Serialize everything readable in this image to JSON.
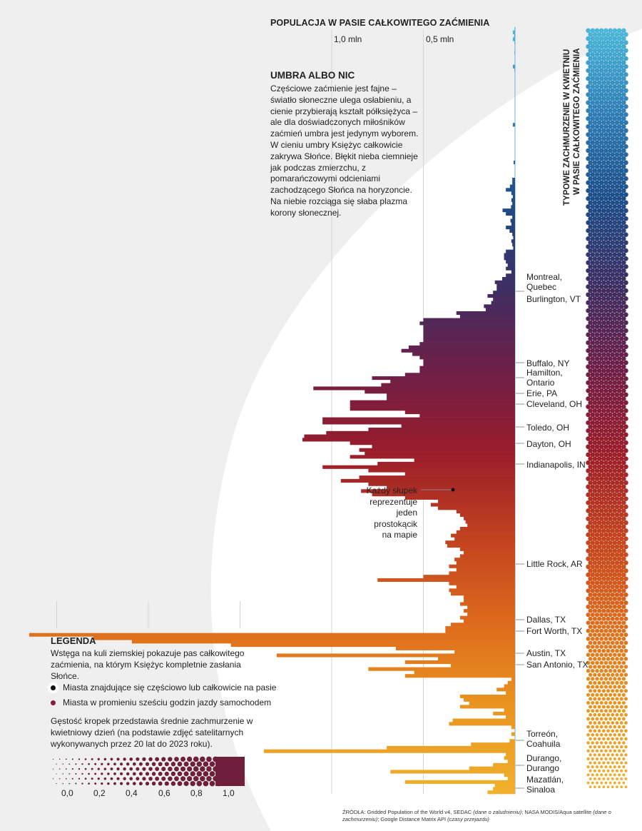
{
  "chart_data": {
    "type": "bar",
    "orientation": "horizontal",
    "title": "POPULACJA W PASIE CAŁKOWITEGO ZAĆMIENIA",
    "xlabel": "",
    "ylabel": "",
    "x_unit": "mln",
    "xlim": [
      0,
      2.65
    ],
    "x_ticks": [
      {
        "value": 1.0,
        "label": "1,0 mln"
      },
      {
        "value": 0.5,
        "label": "0,5 mln"
      }
    ],
    "x_gridlines": [
      0.5,
      1.0,
      1.5,
      2.0,
      2.5
    ],
    "grid": true,
    "bar_note": "Każdy słupek reprezentuje jeden prostokącik na mapie",
    "color_gradient": [
      "#4bb6d8",
      "#2f7db5",
      "#1d4e8a",
      "#3b2f63",
      "#6d1f48",
      "#9a1d2a",
      "#c2421f",
      "#dd6a1c",
      "#e9951f",
      "#f0b02c"
    ],
    "values": [
      0.003,
      0.012,
      0.005,
      0.012,
      0.003,
      0.0,
      0.002,
      0.003,
      0.0,
      0.0,
      0.0,
      0.012,
      0.003,
      0.0,
      0.0,
      0.0,
      0.0,
      0.0,
      0.0,
      0.0,
      0.0,
      0.0,
      0.0,
      0.0,
      0.0,
      0.0,
      0.0,
      0.0,
      0.012,
      0.0,
      0.0,
      0.0,
      0.0,
      0.0,
      0.0,
      0.0,
      0.0,
      0.0,
      0.0,
      0.008,
      0.0,
      0.0,
      0.0,
      0.0,
      0.015,
      0.015,
      0.028,
      0.05,
      0.02,
      0.012,
      0.02,
      0.015,
      0.022,
      0.068,
      0.05,
      0.015,
      0.025,
      0.02,
      0.05,
      0.03,
      0.015,
      0.01,
      0.02,
      0.015,
      0.01,
      0.05,
      0.06,
      0.06,
      0.05,
      0.04,
      0.05,
      0.02,
      0.05,
      0.07,
      0.11,
      0.1,
      0.1,
      0.12,
      0.15,
      0.12,
      0.13,
      0.17,
      0.16,
      0.32,
      0.3,
      0.5,
      0.52,
      0.5,
      0.5,
      0.5,
      0.5,
      0.5,
      0.52,
      0.58,
      0.62,
      0.56,
      0.52,
      0.5,
      0.5,
      0.52,
      0.52,
      0.6,
      0.78,
      0.68,
      0.73,
      1.1,
      0.82,
      0.7,
      0.7,
      0.9,
      0.9,
      0.9,
      0.6,
      0.52,
      1.05,
      1.05,
      0.62,
      0.8,
      1.03,
      1.15,
      1.16,
      0.9,
      0.78,
      0.85,
      0.82,
      0.9,
      0.55,
      0.75,
      1.05,
      0.8,
      0.6,
      0.85,
      0.95,
      0.8,
      0.7,
      0.84,
      0.78,
      0.6,
      0.42,
      0.46,
      0.42,
      0.32,
      0.3,
      0.28,
      0.27,
      0.26,
      0.3,
      0.32,
      0.35,
      0.33,
      0.38,
      0.37,
      0.3,
      0.28,
      0.3,
      0.33,
      0.32,
      0.36,
      0.32,
      0.36,
      0.5,
      0.75,
      0.36,
      0.32,
      0.36,
      0.35,
      0.28,
      0.28,
      0.3,
      0.26,
      0.28,
      0.26,
      0.3,
      0.28,
      0.35,
      0.38,
      0.38,
      2.65,
      2.3,
      2.09,
      1.55,
      0.65,
      0.33,
      1.3,
      0.42,
      0.6,
      0.35,
      0.8,
      0.55,
      0.6,
      0.02,
      0.04,
      0.06,
      0.1,
      0.05,
      0.3,
      0.28,
      0.25,
      0.3,
      0.06,
      0.12,
      0.05,
      0.34,
      0.36,
      0.02,
      0.0,
      0.02,
      0.0,
      0.03,
      0.24,
      0.7,
      1.37,
      0.05,
      0.06,
      0.04,
      0.12,
      0.25,
      0.68,
      0.06,
      0.04,
      0.6,
      0.11,
      0.12,
      0.15
    ]
  },
  "header": {
    "title": "POPULACJA W PASIE CAŁKOWITEGO ZAĆMIENIA",
    "ticks": [
      "1,0 mln",
      "0,5 mln"
    ]
  },
  "umbra": {
    "title": "UMBRA ALBO NIC",
    "text": "Częściowe zaćmienie jest fajne – światło słoneczne ulega osłabieniu, a cienie przybierają kształt półksiężyca – ale dla doświadczonych miłośników zaćmień umbra jest jedynym wyborem. W cieniu umbry Księżyc całkowicie zakrywa Słońce. Błękit nieba ciemnieje jak podczas zmierzchu, z pomarańczowymi odcieniami zachodzącego Słońca na horyzoncie. Na niebie rozciąga się słaba plazma korony słonecznej."
  },
  "cloud_strip": {
    "title_line1": "TYPOWE ZACHMURZENIE W KWIETNIU",
    "title_line2": "W PASIE CAŁKOWITEGO ZAĆMIENIA"
  },
  "cities": [
    {
      "label": "Montreal,\nQuebec",
      "lines": [
        "Montreal,",
        "Quebec"
      ]
    },
    {
      "label": "Burlington, VT",
      "lines": [
        "Burlington, VT"
      ]
    },
    {
      "label": "Buffalo, NY",
      "lines": [
        "Buffalo, NY"
      ]
    },
    {
      "label": "Hamilton, Ontario",
      "lines": [
        "Hamilton,",
        "Ontario"
      ]
    },
    {
      "label": "Erie, PA",
      "lines": [
        "Erie, PA"
      ]
    },
    {
      "label": "Cleveland, OH",
      "lines": [
        "Cleveland, OH"
      ]
    },
    {
      "label": "Toledo, OH",
      "lines": [
        "Toledo, OH"
      ]
    },
    {
      "label": "Dayton, OH",
      "lines": [
        "Dayton, OH"
      ]
    },
    {
      "label": "Indianapolis, IN",
      "lines": [
        "Indianapolis, IN"
      ]
    },
    {
      "label": "Little Rock, AR",
      "lines": [
        "Little Rock, AR"
      ]
    },
    {
      "label": "Dallas, TX",
      "lines": [
        "Dallas, TX"
      ]
    },
    {
      "label": "Fort Worth, TX",
      "lines": [
        "Fort Worth, TX"
      ]
    },
    {
      "label": "Austin, TX",
      "lines": [
        "Austin, TX"
      ]
    },
    {
      "label": "San Antonio, TX",
      "lines": [
        "San Antonio, TX"
      ]
    },
    {
      "label": "Torreón, Coahuila",
      "lines": [
        "Torreón,",
        "Coahuila"
      ]
    },
    {
      "label": "Durango, Durango",
      "lines": [
        "Durango,",
        "Durango"
      ]
    },
    {
      "label": "Mazatlán, Sinaloa",
      "lines": [
        "Mazatlán,",
        "Sinaloa"
      ]
    }
  ],
  "note": {
    "line1": "Każdy słupek",
    "line2": "reprezentuje",
    "line3": "jeden prostokącik",
    "line4": "na mapie"
  },
  "legend": {
    "title": "LEGENDA",
    "text": "Wstęga na kuli ziemskiej pokazuje pas całkowitego zaćmienia, na którym Księżyc kompletnie zasłania Słońce.",
    "items": [
      {
        "label": "Miasta znajdujące się częściowo lub całkowicie na pasie",
        "color": "#111111"
      },
      {
        "label": "Miasta w promieniu sześciu godzin jazdy samochodem",
        "color": "#8a1a3a"
      }
    ],
    "density_text": "Gęstość kropek przedstawia średnie zachmurzenie w kwietniowy dzień (na podstawie zdjęć satelitarnych wykonywanych przez 20 lat do 2023 roku).",
    "scale_labels": [
      "0,0",
      "0,2",
      "0,4",
      "0,6",
      "0,8",
      "1,0"
    ],
    "scale_color": "#6e1f3b"
  },
  "source": {
    "prefix": "ŹRÓDŁA: Gridded Population of the World v4, SEDAC ",
    "i1": "(dane o zaludnieniu)",
    "mid1": ";  NASA MODIS/Aqua satellite ",
    "i2": "(dane o zachmurzeniu)",
    "mid2": "; Google Distance Matrix API ",
    "i3": "(czasy przejazdu)"
  }
}
